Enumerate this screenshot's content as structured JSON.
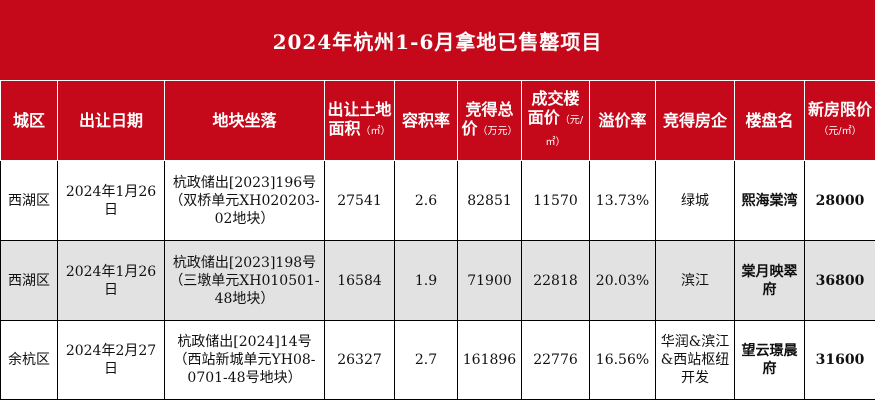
{
  "title": "2024年杭州1-6月拿地已售罄项目",
  "headers": {
    "district": "城区",
    "date": "出让日期",
    "plot": "地块坐落",
    "area": "出让土地面积",
    "area_unit": "（㎡）",
    "far": "容积率",
    "total": "竞得总价",
    "total_unit": "（万元）",
    "floor_price": "成交楼面价",
    "floor_price_unit": "（元/㎡）",
    "premium": "溢价率",
    "developer": "竞得房企",
    "estate": "楼盘名",
    "limit_price": "新房限价",
    "limit_price_unit": "（元/㎡）"
  },
  "rows": [
    {
      "district": "西湖区",
      "date": "2024年1月26日",
      "plot": "杭政储出[2023]196号（双桥单元XH020203-02地块）",
      "area": "27541",
      "far": "2.6",
      "total": "82851",
      "floor_price": "11570",
      "premium": "13.73%",
      "developer": "绿城",
      "estate": "熙海棠湾",
      "limit_price": "28000"
    },
    {
      "district": "西湖区",
      "date": "2024年1月26日",
      "plot": "杭政储出[2023]198号（三墩单元XH010501-48地块）",
      "area": "16584",
      "far": "1.9",
      "total": "71900",
      "floor_price": "22818",
      "premium": "20.03%",
      "developer": "滨江",
      "estate": "棠月映翠府",
      "limit_price": "36800"
    },
    {
      "district": "余杭区",
      "date": "2024年2月27日",
      "plot": "杭政储出[2024]14号（西站新城单元YH08-0701-48号地块）",
      "area": "26327",
      "far": "2.7",
      "total": "161896",
      "floor_price": "22776",
      "premium": "16.56%",
      "developer": "华润&滨江&西站枢纽开发",
      "estate": "望云璟晨府",
      "limit_price": "31600"
    }
  ]
}
